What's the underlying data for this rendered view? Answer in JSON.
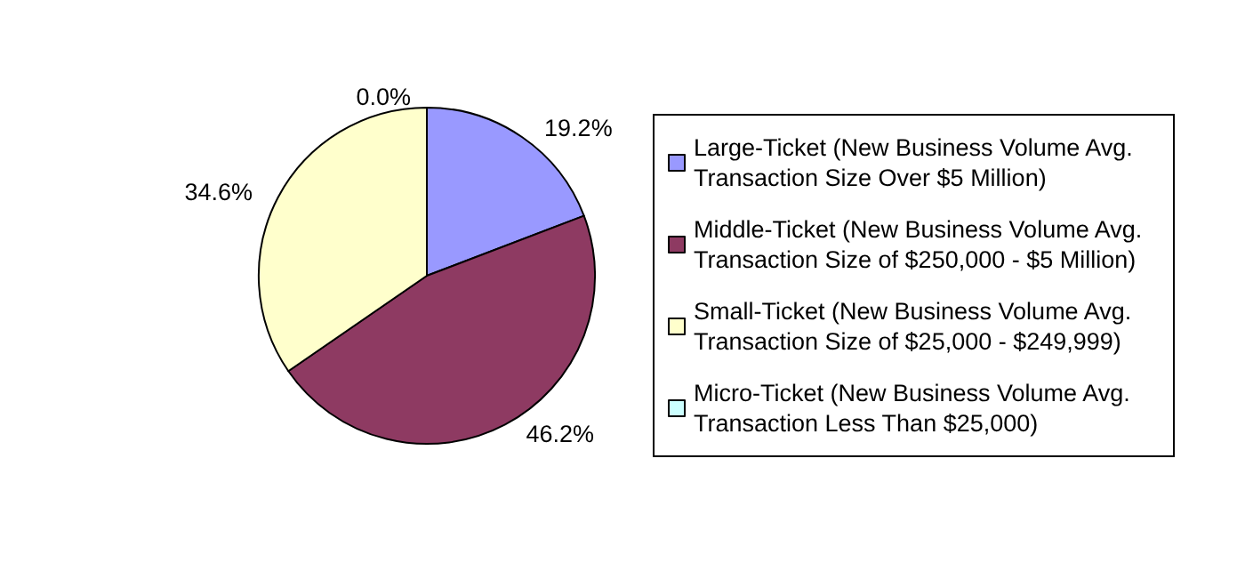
{
  "chart_data": {
    "type": "pie",
    "categories": [
      "Large-Ticket (New Business Volume Avg. Transaction Size Over $5 Million)",
      "Middle-Ticket (New Business Volume Avg. Transaction Size of $250,000 - $5 Million)",
      "Small-Ticket (New Business Volume Avg. Transaction Size of $25,000 - $249,999)",
      "Micro-Ticket (New Business Volume Avg. Transaction Less Than $25,000)"
    ],
    "values": [
      19.2,
      46.2,
      34.6,
      0.0
    ],
    "colors": [
      "#9999ff",
      "#8e3a62",
      "#ffffcc",
      "#ccffff"
    ],
    "value_labels": [
      "19.2%",
      "46.2%",
      "34.6%",
      "0.0%"
    ],
    "legend": "right"
  }
}
